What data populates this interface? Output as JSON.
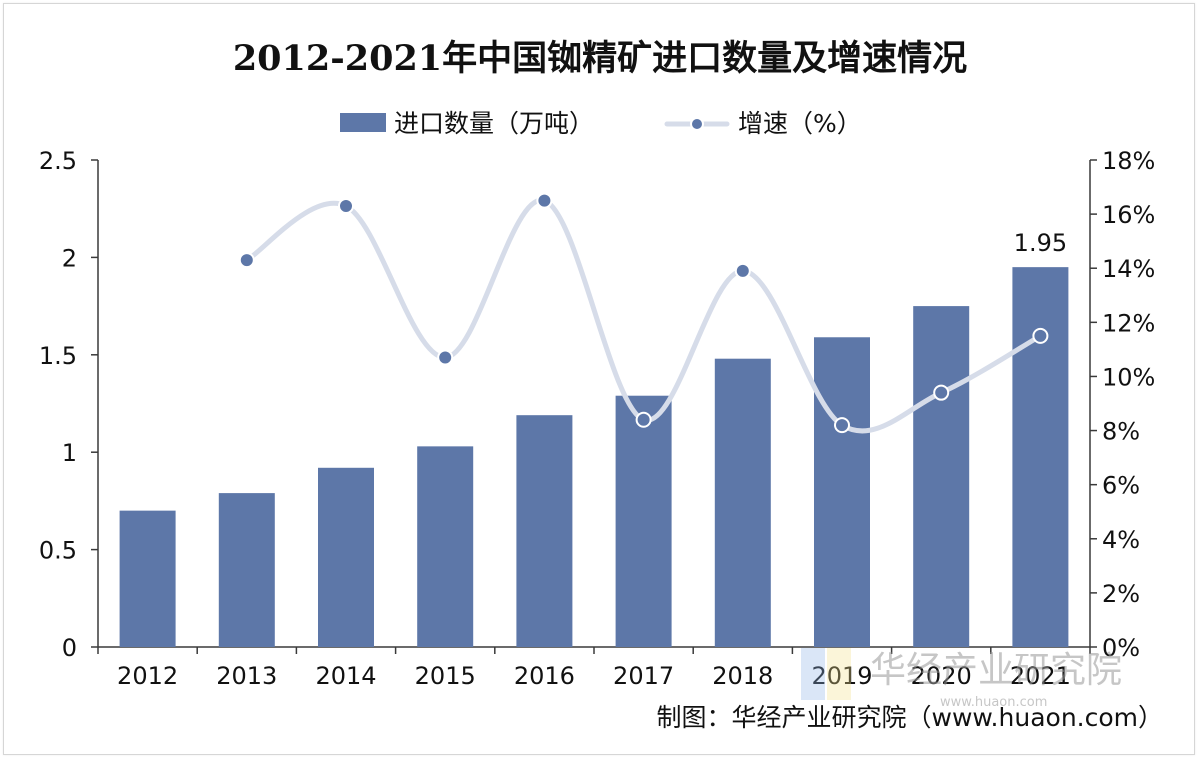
{
  "chart_data": {
    "type": "bar",
    "title": "2012-2021年中国铷精矿进口数量及增速情况",
    "categories": [
      "2012",
      "2013",
      "2014",
      "2015",
      "2016",
      "2017",
      "2018",
      "2019",
      "2020",
      "2021"
    ],
    "series": [
      {
        "name": "进口数量（万吨）",
        "type": "bar",
        "axis": "left",
        "values": [
          0.7,
          0.79,
          0.92,
          1.03,
          1.19,
          1.29,
          1.48,
          1.59,
          1.75,
          1.95
        ]
      },
      {
        "name": "增速（%）",
        "type": "line",
        "axis": "right",
        "values": [
          null,
          14.3,
          16.3,
          10.7,
          16.5,
          8.4,
          13.9,
          8.2,
          9.4,
          11.5
        ]
      }
    ],
    "data_labels": [
      {
        "category": "2021",
        "series": "进口数量（万吨）",
        "text": "1.95"
      }
    ],
    "y_left": {
      "min": 0,
      "max": 2.5,
      "ticks": [
        "0",
        "0.5",
        "1",
        "1.5",
        "2",
        "2.5"
      ],
      "tick_values": [
        0,
        0.5,
        1,
        1.5,
        2,
        2.5
      ]
    },
    "y_right": {
      "min": 0,
      "max": 18,
      "ticks": [
        "0%",
        "2%",
        "4%",
        "6%",
        "8%",
        "10%",
        "12%",
        "14%",
        "16%",
        "18%"
      ],
      "tick_values": [
        0,
        2,
        4,
        6,
        8,
        10,
        12,
        14,
        16,
        18
      ]
    },
    "grid": false,
    "legend_position": "top-center"
  },
  "source": "制图：华经产业研究院（www.huaon.com）",
  "watermark": {
    "text": "华经产业研究院",
    "subtext": "www.huaon.com"
  },
  "colors": {
    "bar": "#5d77a8",
    "line": "#d6dce9",
    "marker": "#5d77a8",
    "axis": "#3a3a3a",
    "text": "#111111"
  }
}
